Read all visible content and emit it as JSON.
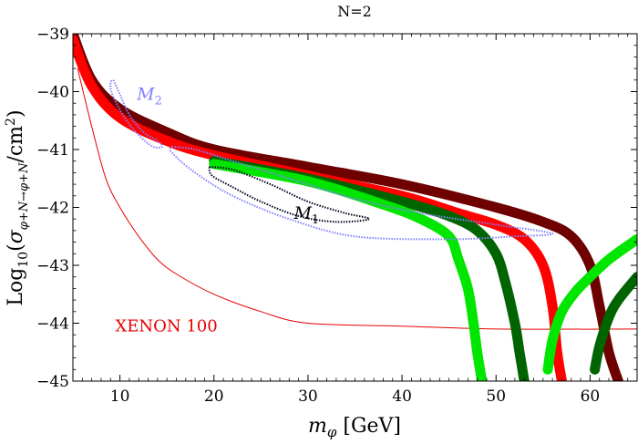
{
  "chart_data": {
    "type": "line",
    "title": "N=2",
    "xlabel": "m_φ [GeV]",
    "ylabel": "Log10(σ φ+N→φ+N / cm²)",
    "xlim": [
      5,
      65
    ],
    "ylim": [
      -45,
      -39
    ],
    "x_ticks": [
      10,
      20,
      30,
      40,
      50,
      60
    ],
    "y_ticks": [
      -45,
      -44,
      -43,
      -42,
      -41,
      -40,
      -39
    ],
    "x_tick_labels": [
      "10",
      "20",
      "30",
      "40",
      "50",
      "60"
    ],
    "y_tick_labels": [
      "−45",
      "−44",
      "−43",
      "−42",
      "−41",
      "−40",
      "−39"
    ],
    "grid": false,
    "annotations": [
      {
        "text": "XENON 100",
        "x": 9.5,
        "y": -44.05,
        "color": "#e60000"
      },
      {
        "text": "M",
        "sub": "2",
        "x": 11.8,
        "y": -40.05,
        "color": "#8080ff"
      },
      {
        "text": "M",
        "sub": "1",
        "x": 28.5,
        "y": -42.1,
        "color": "#000000"
      }
    ],
    "series": [
      {
        "color": "#e60000",
        "style": "thin",
        "points": [
          [
            5.5,
            -39.6
          ],
          [
            7,
            -40.6
          ],
          [
            8.5,
            -41.5
          ],
          [
            10,
            -42.0
          ],
          [
            12,
            -42.5
          ],
          [
            14,
            -42.9
          ],
          [
            16,
            -43.15
          ],
          [
            20,
            -43.5
          ],
          [
            25,
            -43.8
          ],
          [
            30,
            -44.0
          ],
          [
            40,
            -44.05
          ],
          [
            50,
            -44.1
          ],
          [
            65,
            -44.1
          ]
        ]
      },
      {
        "color": "#6e0000",
        "style": "band",
        "points": [
          [
            5,
            -39.0
          ],
          [
            7,
            -39.8
          ],
          [
            10,
            -40.3
          ],
          [
            15,
            -40.7
          ],
          [
            20,
            -41.0
          ],
          [
            30,
            -41.3
          ],
          [
            40,
            -41.6
          ],
          [
            50,
            -42.0
          ],
          [
            55,
            -42.25
          ],
          [
            58,
            -42.5
          ],
          [
            60,
            -43.0
          ],
          [
            61,
            -43.7
          ],
          [
            62,
            -44.5
          ],
          [
            63,
            -45
          ]
        ]
      },
      {
        "color": "#ff0000",
        "style": "band",
        "points": [
          [
            5,
            -39.1
          ],
          [
            7,
            -39.9
          ],
          [
            10,
            -40.45
          ],
          [
            15,
            -40.85
          ],
          [
            20,
            -41.1
          ],
          [
            30,
            -41.45
          ],
          [
            40,
            -41.8
          ],
          [
            46,
            -42.1
          ],
          [
            50,
            -42.3
          ],
          [
            53,
            -42.55
          ],
          [
            55,
            -43.0
          ],
          [
            56,
            -43.7
          ],
          [
            56.5,
            -44.5
          ],
          [
            57,
            -45
          ]
        ]
      },
      {
        "color": "#006400",
        "style": "band",
        "points": [
          [
            20,
            -41.2
          ],
          [
            30,
            -41.5
          ],
          [
            40,
            -41.9
          ],
          [
            45,
            -42.15
          ],
          [
            48,
            -42.4
          ],
          [
            50,
            -42.8
          ],
          [
            51,
            -43.3
          ],
          [
            52,
            -44.0
          ],
          [
            52.5,
            -44.5
          ],
          [
            53,
            -45
          ]
        ]
      },
      {
        "color": "#00e600",
        "style": "band",
        "points": [
          [
            20,
            -41.25
          ],
          [
            30,
            -41.55
          ],
          [
            38,
            -41.95
          ],
          [
            42,
            -42.2
          ],
          [
            45,
            -42.5
          ],
          [
            46,
            -42.9
          ],
          [
            47,
            -43.4
          ],
          [
            47.6,
            -44.0
          ],
          [
            48,
            -44.5
          ],
          [
            48.5,
            -45
          ]
        ]
      },
      {
        "color": "#00e600",
        "style": "band",
        "points": [
          [
            55.5,
            -44.8
          ],
          [
            56,
            -44.3
          ],
          [
            57,
            -43.8
          ],
          [
            58.5,
            -43.45
          ],
          [
            60,
            -43.2
          ],
          [
            62,
            -42.9
          ],
          [
            65,
            -42.55
          ]
        ]
      },
      {
        "color": "#006400",
        "style": "band",
        "points": [
          [
            60.5,
            -44.8
          ],
          [
            61,
            -44.4
          ],
          [
            62,
            -43.9
          ],
          [
            63,
            -43.6
          ],
          [
            65,
            -43.2
          ]
        ]
      },
      {
        "color": "#8080ff",
        "style": "contour",
        "points": [
          [
            9.3,
            -39.8
          ],
          [
            10,
            -40.05
          ],
          [
            11,
            -40.4
          ],
          [
            12.5,
            -40.7
          ],
          [
            14,
            -40.85
          ],
          [
            14.5,
            -40.95
          ],
          [
            13.5,
            -40.95
          ],
          [
            12,
            -40.75
          ],
          [
            10.5,
            -40.45
          ],
          [
            9.2,
            -40.05
          ],
          [
            9,
            -39.85
          ],
          [
            9.3,
            -39.8
          ]
        ]
      },
      {
        "color": "#8080ff",
        "style": "contour",
        "points": [
          [
            15.5,
            -40.95
          ],
          [
            18,
            -41.0
          ],
          [
            22,
            -41.2
          ],
          [
            28,
            -41.5
          ],
          [
            35,
            -41.85
          ],
          [
            42,
            -42.1
          ],
          [
            50,
            -42.3
          ],
          [
            56,
            -42.45
          ],
          [
            52,
            -42.5
          ],
          [
            45,
            -42.55
          ],
          [
            35,
            -42.5
          ],
          [
            28,
            -42.2
          ],
          [
            22,
            -41.8
          ],
          [
            18,
            -41.4
          ],
          [
            15.5,
            -41.05
          ],
          [
            15.5,
            -40.95
          ]
        ]
      },
      {
        "color": "#000020",
        "style": "contour",
        "points": [
          [
            19.5,
            -41.3
          ],
          [
            22,
            -41.35
          ],
          [
            26,
            -41.6
          ],
          [
            30,
            -41.9
          ],
          [
            34,
            -42.1
          ],
          [
            36.5,
            -42.2
          ],
          [
            33,
            -42.25
          ],
          [
            29,
            -42.15
          ],
          [
            25,
            -41.9
          ],
          [
            22,
            -41.65
          ],
          [
            19.8,
            -41.45
          ],
          [
            19.5,
            -41.3
          ]
        ]
      }
    ]
  }
}
